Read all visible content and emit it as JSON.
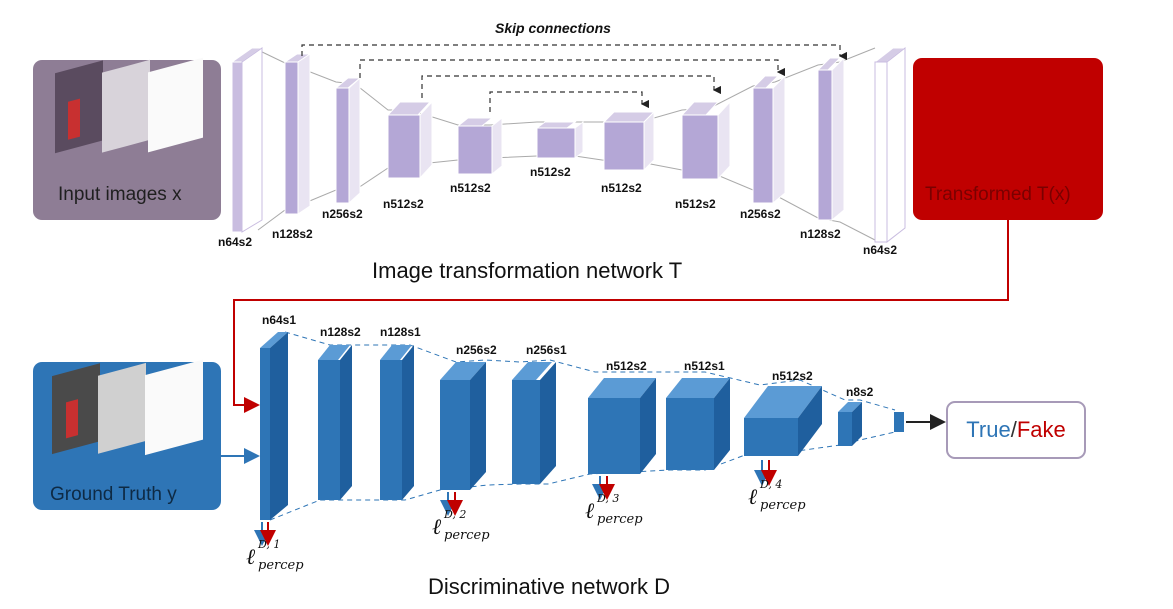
{
  "diagram": {
    "skip_label": "Skip connections",
    "generator_title": "Image transformation network T",
    "discriminator_title": "Discriminative network D",
    "input_label": "Input images x",
    "output_label": "Transformed T(x)",
    "ground_truth_label": "Ground Truth y",
    "result_true": "True",
    "result_sep": "/",
    "result_fake": "Fake",
    "generator_layers": [
      "n64s2",
      "n128s2",
      "n256s2",
      "n512s2",
      "n512s2",
      "n512s2",
      "n512s2",
      "n512s2",
      "n256s2",
      "n128s2",
      "n64s2"
    ],
    "discriminator_layers": [
      "n64s1",
      "n128s2",
      "n128s1",
      "n256s2",
      "n256s1",
      "n512s2",
      "n512s1",
      "n512s2",
      "n8s2"
    ],
    "losses": [
      {
        "symbol": "ℓ",
        "sup": "D, 1",
        "sub": "percep"
      },
      {
        "symbol": "ℓ",
        "sup": "D, 2",
        "sub": "percep"
      },
      {
        "symbol": "ℓ",
        "sup": "D, 3",
        "sub": "percep"
      },
      {
        "symbol": "ℓ",
        "sup": "D, 4",
        "sub": "percep"
      }
    ],
    "colors": {
      "input_box": "#8e7d95",
      "output_box": "#c00000",
      "gt_box": "#2e75b6",
      "gen_layer": "#b4a7d6",
      "disc_layer": "#2e75b6",
      "red_line": "#c00000",
      "blue_arrow": "#2e75b6"
    }
  }
}
